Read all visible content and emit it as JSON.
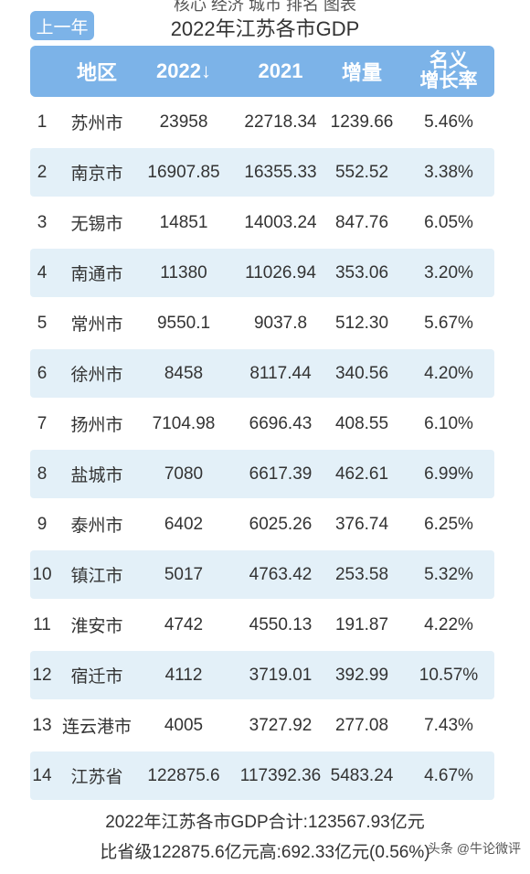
{
  "top_partial_text": "核心 经济 城市 排名 图表",
  "prev_button_label": "上一年",
  "title": "2022年江苏各市GDP",
  "columns": {
    "region": "地区",
    "y2022": "2022↓",
    "y2021": "2021",
    "increase": "增量",
    "rate_line1": "名义",
    "rate_line2": "增长率"
  },
  "rows": [
    {
      "idx": "1",
      "name": "苏州市",
      "y2022": "23958",
      "y2021": "22718.34",
      "inc": "1239.66",
      "rate": "5.46%"
    },
    {
      "idx": "2",
      "name": "南京市",
      "y2022": "16907.85",
      "y2021": "16355.33",
      "inc": "552.52",
      "rate": "3.38%"
    },
    {
      "idx": "3",
      "name": "无锡市",
      "y2022": "14851",
      "y2021": "14003.24",
      "inc": "847.76",
      "rate": "6.05%"
    },
    {
      "idx": "4",
      "name": "南通市",
      "y2022": "11380",
      "y2021": "11026.94",
      "inc": "353.06",
      "rate": "3.20%"
    },
    {
      "idx": "5",
      "name": "常州市",
      "y2022": "9550.1",
      "y2021": "9037.8",
      "inc": "512.30",
      "rate": "5.67%"
    },
    {
      "idx": "6",
      "name": "徐州市",
      "y2022": "8458",
      "y2021": "8117.44",
      "inc": "340.56",
      "rate": "4.20%"
    },
    {
      "idx": "7",
      "name": "扬州市",
      "y2022": "7104.98",
      "y2021": "6696.43",
      "inc": "408.55",
      "rate": "6.10%"
    },
    {
      "idx": "8",
      "name": "盐城市",
      "y2022": "7080",
      "y2021": "6617.39",
      "inc": "462.61",
      "rate": "6.99%"
    },
    {
      "idx": "9",
      "name": "泰州市",
      "y2022": "6402",
      "y2021": "6025.26",
      "inc": "376.74",
      "rate": "6.25%"
    },
    {
      "idx": "10",
      "name": "镇江市",
      "y2022": "5017",
      "y2021": "4763.42",
      "inc": "253.58",
      "rate": "5.32%"
    },
    {
      "idx": "11",
      "name": "淮安市",
      "y2022": "4742",
      "y2021": "4550.13",
      "inc": "191.87",
      "rate": "4.22%"
    },
    {
      "idx": "12",
      "name": "宿迁市",
      "y2022": "4112",
      "y2021": "3719.01",
      "inc": "392.99",
      "rate": "10.57%"
    },
    {
      "idx": "13",
      "name": "连云港市",
      "y2022": "4005",
      "y2021": "3727.92",
      "inc": "277.08",
      "rate": "7.43%"
    },
    {
      "idx": "14",
      "name": "江苏省",
      "y2022": "122875.6",
      "y2021": "117392.36",
      "inc": "5483.24",
      "rate": "4.67%"
    }
  ],
  "footer": {
    "line1": "2022年江苏各市GDP合计:123567.93亿元",
    "line2": "比省级122875.6亿元高:692.33亿元(0.56%)"
  },
  "watermark": "头条 @牛论微评",
  "colors": {
    "accent": "#7cb3e8",
    "row_alt": "#e3f0f8"
  }
}
